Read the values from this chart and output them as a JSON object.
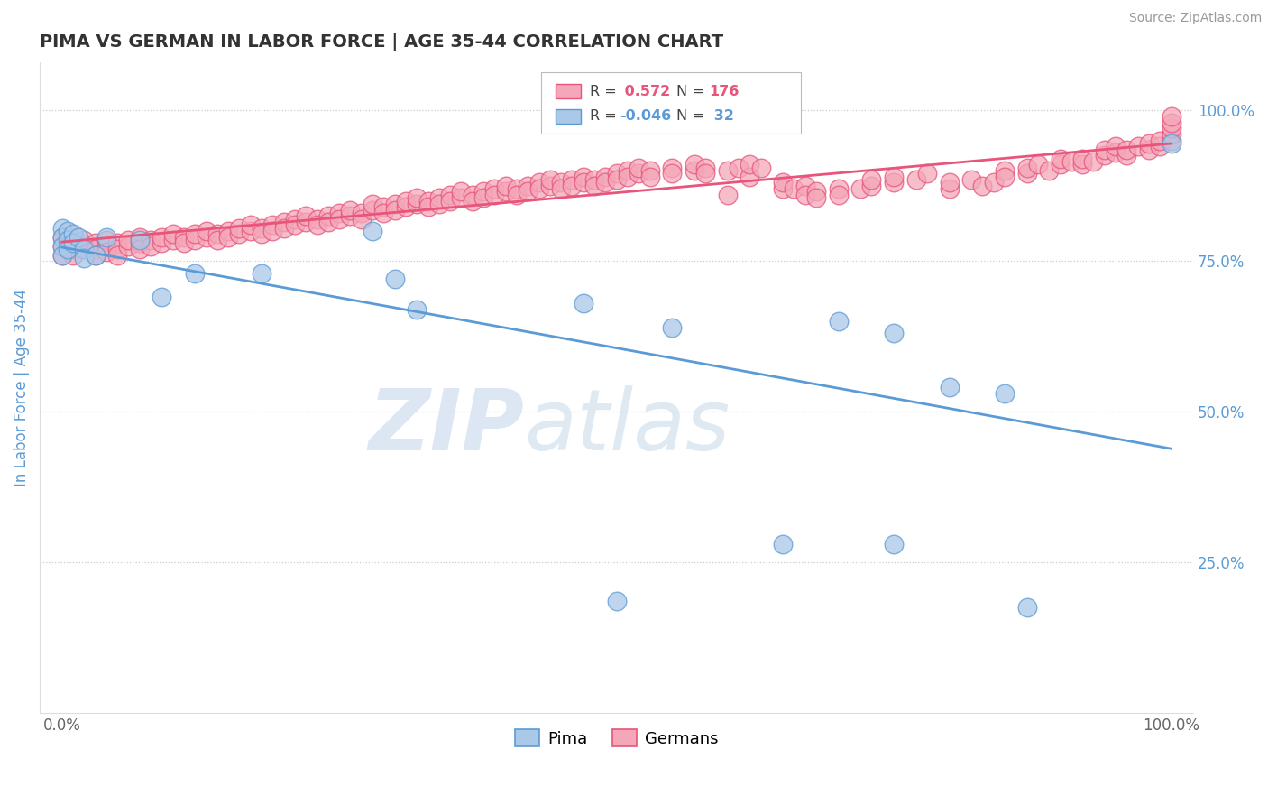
{
  "title": "PIMA VS GERMAN IN LABOR FORCE | AGE 35-44 CORRELATION CHART",
  "source_text": "Source: ZipAtlas.com",
  "ylabel": "In Labor Force | Age 35-44",
  "xlim": [
    -0.02,
    1.02
  ],
  "ylim": [
    0.0,
    1.08
  ],
  "x_ticks": [
    0.0,
    1.0
  ],
  "x_tick_labels": [
    "0.0%",
    "100.0%"
  ],
  "y_tick_values_right": [
    0.25,
    0.5,
    0.75,
    1.0
  ],
  "y_tick_labels_right": [
    "25.0%",
    "50.0%",
    "75.0%",
    "100.0%"
  ],
  "legend_label_pima": "Pima",
  "legend_label_german": "Germans",
  "pima_color": "#aac8e8",
  "pima_edge_color": "#5b9bd5",
  "german_color": "#f4a7b9",
  "german_edge_color": "#e8547a",
  "trend_pima_color": "#5b9bd5",
  "trend_german_color": "#e8547a",
  "watermark_zip": "ZIP",
  "watermark_atlas": "atlas",
  "background_color": "#ffffff",
  "grid_color": "#cccccc",
  "title_color": "#333333",
  "axis_label_color": "#5b9bd5",
  "right_tick_color": "#5b9bd5",
  "pima_R": -0.046,
  "pima_N": 32,
  "german_R": 0.572,
  "german_N": 176,
  "pima_scatter": [
    [
      0.0,
      0.805
    ],
    [
      0.0,
      0.79
    ],
    [
      0.0,
      0.775
    ],
    [
      0.0,
      0.76
    ],
    [
      0.005,
      0.8
    ],
    [
      0.005,
      0.785
    ],
    [
      0.005,
      0.77
    ],
    [
      0.01,
      0.795
    ],
    [
      0.01,
      0.78
    ],
    [
      0.015,
      0.79
    ],
    [
      0.02,
      0.77
    ],
    [
      0.02,
      0.755
    ],
    [
      0.03,
      0.76
    ],
    [
      0.04,
      0.79
    ],
    [
      0.07,
      0.785
    ],
    [
      0.09,
      0.69
    ],
    [
      0.12,
      0.73
    ],
    [
      0.18,
      0.73
    ],
    [
      0.28,
      0.8
    ],
    [
      0.3,
      0.72
    ],
    [
      0.32,
      0.67
    ],
    [
      0.47,
      0.68
    ],
    [
      0.5,
      0.185
    ],
    [
      0.55,
      0.64
    ],
    [
      0.65,
      0.28
    ],
    [
      0.7,
      0.65
    ],
    [
      0.75,
      0.63
    ],
    [
      0.75,
      0.28
    ],
    [
      0.8,
      0.54
    ],
    [
      0.85,
      0.53
    ],
    [
      0.87,
      0.175
    ],
    [
      1.0,
      0.945
    ]
  ],
  "german_scatter": [
    [
      0.0,
      0.76
    ],
    [
      0.0,
      0.775
    ],
    [
      0.0,
      0.79
    ],
    [
      0.01,
      0.77
    ],
    [
      0.01,
      0.78
    ],
    [
      0.01,
      0.76
    ],
    [
      0.02,
      0.775
    ],
    [
      0.02,
      0.785
    ],
    [
      0.02,
      0.77
    ],
    [
      0.03,
      0.78
    ],
    [
      0.03,
      0.77
    ],
    [
      0.03,
      0.76
    ],
    [
      0.04,
      0.775
    ],
    [
      0.04,
      0.785
    ],
    [
      0.04,
      0.765
    ],
    [
      0.05,
      0.78
    ],
    [
      0.05,
      0.77
    ],
    [
      0.05,
      0.76
    ],
    [
      0.06,
      0.775
    ],
    [
      0.06,
      0.785
    ],
    [
      0.07,
      0.78
    ],
    [
      0.07,
      0.79
    ],
    [
      0.07,
      0.77
    ],
    [
      0.08,
      0.785
    ],
    [
      0.08,
      0.775
    ],
    [
      0.09,
      0.78
    ],
    [
      0.09,
      0.79
    ],
    [
      0.1,
      0.785
    ],
    [
      0.1,
      0.795
    ],
    [
      0.11,
      0.79
    ],
    [
      0.11,
      0.78
    ],
    [
      0.12,
      0.785
    ],
    [
      0.12,
      0.795
    ],
    [
      0.13,
      0.79
    ],
    [
      0.13,
      0.8
    ],
    [
      0.14,
      0.795
    ],
    [
      0.14,
      0.785
    ],
    [
      0.15,
      0.8
    ],
    [
      0.15,
      0.79
    ],
    [
      0.16,
      0.795
    ],
    [
      0.16,
      0.805
    ],
    [
      0.17,
      0.8
    ],
    [
      0.17,
      0.81
    ],
    [
      0.18,
      0.805
    ],
    [
      0.18,
      0.795
    ],
    [
      0.19,
      0.81
    ],
    [
      0.19,
      0.8
    ],
    [
      0.2,
      0.815
    ],
    [
      0.2,
      0.805
    ],
    [
      0.21,
      0.82
    ],
    [
      0.21,
      0.81
    ],
    [
      0.22,
      0.815
    ],
    [
      0.22,
      0.825
    ],
    [
      0.23,
      0.82
    ],
    [
      0.23,
      0.81
    ],
    [
      0.24,
      0.825
    ],
    [
      0.24,
      0.815
    ],
    [
      0.25,
      0.83
    ],
    [
      0.25,
      0.82
    ],
    [
      0.26,
      0.825
    ],
    [
      0.26,
      0.835
    ],
    [
      0.27,
      0.83
    ],
    [
      0.27,
      0.82
    ],
    [
      0.28,
      0.835
    ],
    [
      0.28,
      0.845
    ],
    [
      0.29,
      0.84
    ],
    [
      0.29,
      0.83
    ],
    [
      0.3,
      0.845
    ],
    [
      0.3,
      0.835
    ],
    [
      0.31,
      0.84
    ],
    [
      0.31,
      0.85
    ],
    [
      0.32,
      0.845
    ],
    [
      0.32,
      0.855
    ],
    [
      0.33,
      0.85
    ],
    [
      0.33,
      0.84
    ],
    [
      0.34,
      0.855
    ],
    [
      0.34,
      0.845
    ],
    [
      0.35,
      0.86
    ],
    [
      0.35,
      0.85
    ],
    [
      0.36,
      0.855
    ],
    [
      0.36,
      0.865
    ],
    [
      0.37,
      0.86
    ],
    [
      0.37,
      0.85
    ],
    [
      0.38,
      0.865
    ],
    [
      0.38,
      0.855
    ],
    [
      0.39,
      0.87
    ],
    [
      0.39,
      0.86
    ],
    [
      0.4,
      0.865
    ],
    [
      0.4,
      0.875
    ],
    [
      0.41,
      0.87
    ],
    [
      0.41,
      0.86
    ],
    [
      0.42,
      0.875
    ],
    [
      0.42,
      0.865
    ],
    [
      0.43,
      0.88
    ],
    [
      0.43,
      0.87
    ],
    [
      0.44,
      0.875
    ],
    [
      0.44,
      0.885
    ],
    [
      0.45,
      0.88
    ],
    [
      0.45,
      0.87
    ],
    [
      0.46,
      0.885
    ],
    [
      0.46,
      0.875
    ],
    [
      0.47,
      0.89
    ],
    [
      0.47,
      0.88
    ],
    [
      0.48,
      0.885
    ],
    [
      0.48,
      0.875
    ],
    [
      0.49,
      0.89
    ],
    [
      0.49,
      0.88
    ],
    [
      0.5,
      0.895
    ],
    [
      0.5,
      0.885
    ],
    [
      0.51,
      0.9
    ],
    [
      0.51,
      0.89
    ],
    [
      0.52,
      0.895
    ],
    [
      0.52,
      0.905
    ],
    [
      0.53,
      0.9
    ],
    [
      0.53,
      0.89
    ],
    [
      0.55,
      0.905
    ],
    [
      0.55,
      0.895
    ],
    [
      0.57,
      0.9
    ],
    [
      0.57,
      0.91
    ],
    [
      0.58,
      0.905
    ],
    [
      0.58,
      0.895
    ],
    [
      0.6,
      0.86
    ],
    [
      0.6,
      0.9
    ],
    [
      0.61,
      0.905
    ],
    [
      0.62,
      0.89
    ],
    [
      0.62,
      0.91
    ],
    [
      0.63,
      0.905
    ],
    [
      0.65,
      0.87
    ],
    [
      0.65,
      0.88
    ],
    [
      0.66,
      0.87
    ],
    [
      0.67,
      0.875
    ],
    [
      0.67,
      0.86
    ],
    [
      0.68,
      0.865
    ],
    [
      0.68,
      0.855
    ],
    [
      0.7,
      0.87
    ],
    [
      0.7,
      0.86
    ],
    [
      0.72,
      0.87
    ],
    [
      0.73,
      0.875
    ],
    [
      0.73,
      0.885
    ],
    [
      0.75,
      0.88
    ],
    [
      0.75,
      0.89
    ],
    [
      0.77,
      0.885
    ],
    [
      0.78,
      0.895
    ],
    [
      0.8,
      0.87
    ],
    [
      0.8,
      0.88
    ],
    [
      0.82,
      0.885
    ],
    [
      0.83,
      0.875
    ],
    [
      0.84,
      0.88
    ],
    [
      0.85,
      0.9
    ],
    [
      0.85,
      0.89
    ],
    [
      0.87,
      0.895
    ],
    [
      0.87,
      0.905
    ],
    [
      0.88,
      0.91
    ],
    [
      0.89,
      0.9
    ],
    [
      0.9,
      0.91
    ],
    [
      0.9,
      0.92
    ],
    [
      0.91,
      0.915
    ],
    [
      0.92,
      0.91
    ],
    [
      0.92,
      0.92
    ],
    [
      0.93,
      0.915
    ],
    [
      0.94,
      0.925
    ],
    [
      0.94,
      0.935
    ],
    [
      0.95,
      0.93
    ],
    [
      0.95,
      0.94
    ],
    [
      0.96,
      0.925
    ],
    [
      0.96,
      0.935
    ],
    [
      0.97,
      0.94
    ],
    [
      0.98,
      0.935
    ],
    [
      0.98,
      0.945
    ],
    [
      0.99,
      0.94
    ],
    [
      0.99,
      0.95
    ],
    [
      1.0,
      0.95
    ],
    [
      1.0,
      0.96
    ],
    [
      1.0,
      0.97
    ],
    [
      1.0,
      0.98
    ],
    [
      1.0,
      0.99
    ]
  ]
}
